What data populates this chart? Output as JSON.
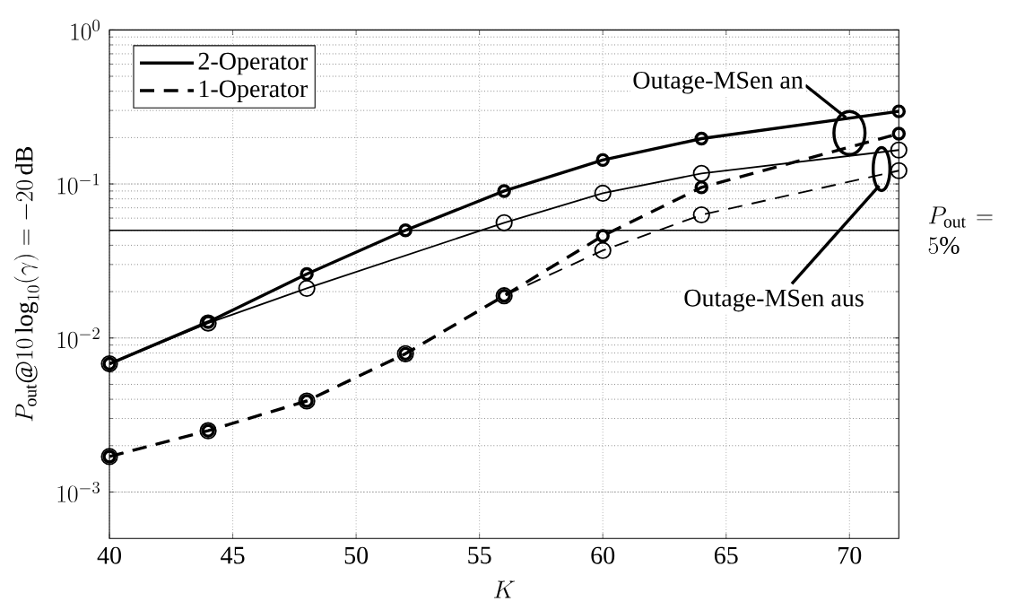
{
  "chart_data": {
    "type": "line",
    "xlabel": "K",
    "ylabel": "P_{\\mathrm{out}}@10\\log_{10}(\\gamma)=-20\\,\\mathrm{dB}",
    "xlim": [
      40,
      72
    ],
    "xticks": [
      40,
      45,
      50,
      55,
      60,
      65,
      70
    ],
    "ylim": [
      0.0005,
      1
    ],
    "yticks": [
      {
        "value": 0.001,
        "label": "10^{-3}"
      },
      {
        "value": 0.01,
        "label": "10^{-2}"
      },
      {
        "value": 0.1,
        "label": "10^{-1}"
      },
      {
        "value": 1,
        "label": "10^{0}"
      }
    ],
    "log": "y",
    "grid": true,
    "legend": "top left",
    "marker": "circle",
    "series": [
      {
        "name": "2-Operator",
        "color": "#000000",
        "line_style": "solid",
        "x": [
          40,
          44,
          48,
          52,
          56,
          60,
          64,
          72
        ],
        "values": [
          0.0068,
          0.0127,
          0.026,
          0.05,
          0.09,
          0.143,
          0.197,
          0.296
        ]
      },
      {
        "name": "1-Operator",
        "color": "#000000",
        "line_style": "dashed",
        "x": [
          40,
          44,
          48,
          52,
          56,
          60,
          64,
          72
        ],
        "values": [
          0.0017,
          0.0025,
          0.0039,
          0.0079,
          0.0188,
          0.046,
          0.095,
          0.212
        ]
      },
      {
        "color": "#000000",
        "line_style": "solid",
        "x": [
          40,
          44,
          48,
          56,
          60,
          64,
          72
        ],
        "values": [
          0.0068,
          0.0125,
          0.021,
          0.056,
          0.087,
          0.117,
          0.166
        ]
      },
      {
        "color": "#000000",
        "line_style": "dashed",
        "x": [
          40,
          44,
          48,
          52,
          56,
          60,
          64,
          72
        ],
        "values": [
          0.0017,
          0.0025,
          0.0039,
          0.0079,
          0.0188,
          0.037,
          0.063,
          0.122
        ]
      }
    ],
    "ref_lines": [
      {
        "axis": "y",
        "value": 0.05,
        "label": "P_{\\mathrm{out}}=5\\%",
        "color": "#000000",
        "line_style": "solid"
      }
    ],
    "annotations": [
      {
        "text": "Outage-MSen an",
        "x": 70,
        "y": 0.27
      },
      "Outage-MSen aus"
    ]
  }
}
